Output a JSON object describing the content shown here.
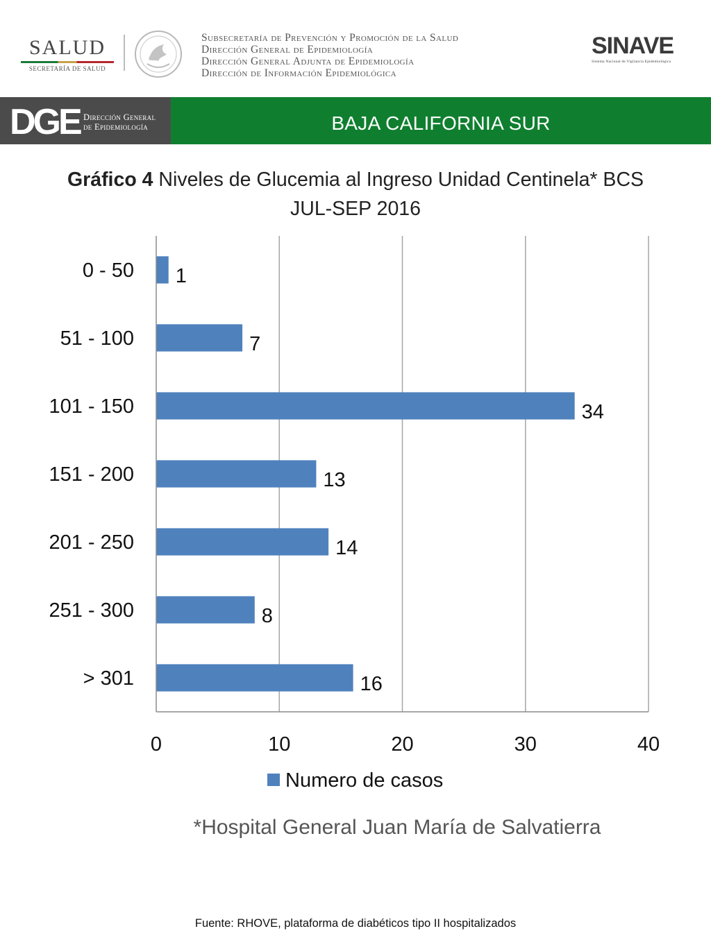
{
  "header": {
    "salud_logo": {
      "name": "SALUD",
      "sub": "SECRETARÍA DE SALUD"
    },
    "seal_icon": "mexico-coat-of-arms-icon",
    "institution_lines": [
      "Subsecretaría de Prevención y Promoción de la Salud",
      "Dirección General de Epidemiología",
      "Dirección General Adjunta de Epidemiología",
      "Dirección de Información Epidemiológica"
    ],
    "sinave_logo": {
      "name": "SINAVE",
      "sub": "Sistema Nacional de Vigilancia Epidemiológica"
    }
  },
  "banner": {
    "dge_logo": {
      "letters": "DGE",
      "line1": "Dirección General",
      "line2": "de Epidemiología"
    },
    "state": "BAJA CALIFORNIA SUR",
    "grey_color": "#4b4b4b",
    "green_color": "#0f7f2f"
  },
  "chart_data": {
    "type": "bar",
    "orientation": "horizontal",
    "title": "Gráfico 4 Niveles de Glucemia al Ingreso Unidad Centinela* BCS JUL-SEP 2016",
    "title_bold_part": "Gráfico 4",
    "title_rest_line1": " Niveles de Glucemia al Ingreso Unidad Centinela* BCS",
    "title_line2": "JUL-SEP 2016",
    "categories": [
      "0 - 50",
      "51 - 100",
      "101 - 150",
      "151 - 200",
      "201 - 250",
      "251 - 300",
      "> 301"
    ],
    "series": [
      {
        "name": "Numero de casos",
        "values": [
          1,
          7,
          34,
          13,
          14,
          8,
          16
        ],
        "color": "#4f81bd"
      }
    ],
    "xlim": [
      0,
      40
    ],
    "xticks": [
      0,
      10,
      20,
      30,
      40
    ],
    "xgrid": true,
    "legend_position": "bottom",
    "data_labels": true
  },
  "note": "*Hospital General Juan María de Salvatierra",
  "footer": "Fuente: RHOVE, plataforma de diabéticos tipo II hospitalizados"
}
